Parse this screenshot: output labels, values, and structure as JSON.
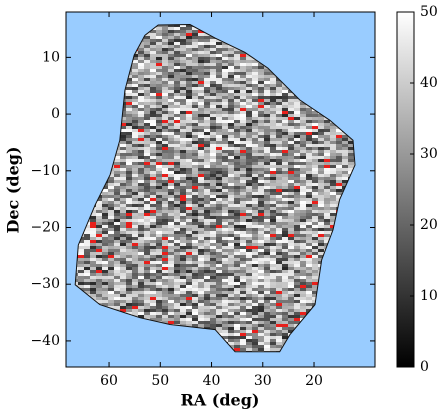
{
  "chart_data": {
    "type": "area",
    "x_label": "RA (deg)",
    "y_label": "Dec (deg)",
    "xlim": [
      68.4,
      8.1
    ],
    "ylim": [
      -44.6,
      18
    ],
    "xticks": [
      60,
      50,
      40,
      30,
      20
    ],
    "yticks": [
      10,
      0,
      {
        "value": -10,
        "label": "−10"
      },
      {
        "value": -20,
        "label": "−20"
      },
      {
        "value": -30,
        "label": "−30"
      },
      {
        "value": -40,
        "label": "−40"
      }
    ],
    "x": [
      50.4,
      44.2,
      39.3,
      33.5,
      29.0,
      22.8,
      16.9,
      12.4,
      12.0,
      15.0,
      16.3,
      18.5,
      19.8,
      24.7,
      26.7,
      35.4,
      39.3,
      48.1,
      54.0,
      61.8,
      66.6,
      66.0,
      62.7,
      59.8,
      57.9,
      56.9,
      55.1,
      53.0
    ],
    "y": [
      15.7,
      15.8,
      13.4,
      10.9,
      8.1,
      2.5,
      -1.1,
      -4.6,
      -9.0,
      -15.1,
      -20.4,
      -25.7,
      -33.6,
      -38.9,
      -41.9,
      -41.9,
      -38.0,
      -37.1,
      -35.9,
      -33.6,
      -30.1,
      -23.1,
      -16.0,
      -10.7,
      -4.6,
      4.2,
      10.4,
      13.9
    ],
    "background": "#99ccff",
    "colorbar": {
      "lim": [
        0,
        50
      ],
      "ticks": [
        0,
        10,
        20,
        30,
        40,
        50
      ],
      "colormap": "gray"
    }
  }
}
